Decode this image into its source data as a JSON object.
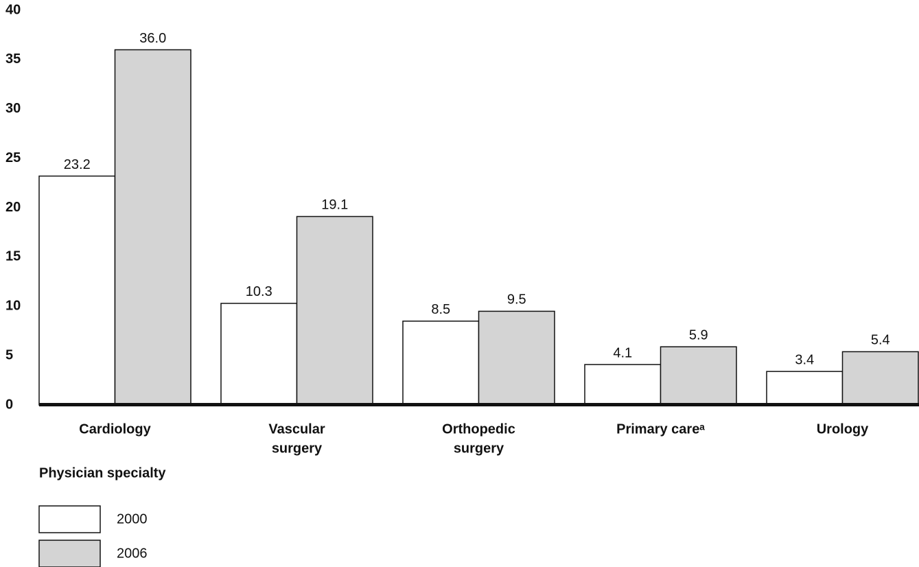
{
  "chart_data": {
    "type": "bar",
    "x_label": "Physician specialty",
    "categories": [
      [
        "Cardiology"
      ],
      [
        "Vascular",
        "surgery"
      ],
      [
        "Orthopedic",
        "surgery"
      ],
      [
        "Primary careᵃ"
      ],
      [
        "Urology"
      ]
    ],
    "series": [
      {
        "name": "2000",
        "color": "#ffffff",
        "values": [
          23.2,
          10.3,
          8.5,
          4.1,
          3.4
        ],
        "value_labels": [
          "23.2",
          "10.3",
          "8.5",
          "4.1",
          "3.4"
        ]
      },
      {
        "name": "2006",
        "color": "#d4d4d4",
        "values": [
          36,
          19.1,
          9.5,
          5.9,
          5.4
        ],
        "value_labels": [
          "36.0",
          "19.1",
          "9.5",
          "5.9",
          "5.4"
        ]
      }
    ],
    "ylim": [
      0,
      40
    ],
    "yticks": [
      0,
      5,
      10,
      15,
      20,
      25,
      30,
      35,
      40
    ],
    "grid": false
  }
}
